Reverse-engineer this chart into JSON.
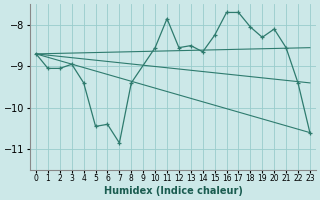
{
  "xlabel": "Humidex (Indice chaleur)",
  "ylabel": "",
  "background_color": "#cce8e8",
  "line_color": "#2e7b6e",
  "grid_color": "#99cccc",
  "xlim": [
    -0.5,
    23.5
  ],
  "ylim": [
    -11.5,
    -7.5
  ],
  "yticks": [
    -11,
    -10,
    -9,
    -8
  ],
  "xticks": [
    0,
    1,
    2,
    3,
    4,
    5,
    6,
    7,
    8,
    9,
    10,
    11,
    12,
    13,
    14,
    15,
    16,
    17,
    18,
    19,
    20,
    21,
    22,
    23
  ],
  "series": [
    {
      "x": [
        0,
        1,
        2,
        3,
        4,
        5,
        6,
        7,
        8,
        10,
        11,
        12,
        13,
        14,
        15,
        16,
        17,
        18,
        19,
        20,
        21,
        22,
        23
      ],
      "y": [
        -8.7,
        -9.05,
        -9.05,
        -8.95,
        -9.4,
        -10.45,
        -10.4,
        -10.85,
        -9.4,
        -8.55,
        -7.85,
        -8.55,
        -8.5,
        -8.65,
        -8.25,
        -7.7,
        -7.7,
        -8.05,
        -8.3,
        -8.1,
        -8.55,
        -9.4,
        -10.6
      ],
      "has_markers": true
    },
    {
      "x": [
        0,
        23
      ],
      "y": [
        -8.7,
        -10.6
      ],
      "has_markers": false
    },
    {
      "x": [
        0,
        23
      ],
      "y": [
        -8.7,
        -9.4
      ],
      "has_markers": false
    },
    {
      "x": [
        0,
        23
      ],
      "y": [
        -8.7,
        -8.55
      ],
      "has_markers": false
    }
  ]
}
